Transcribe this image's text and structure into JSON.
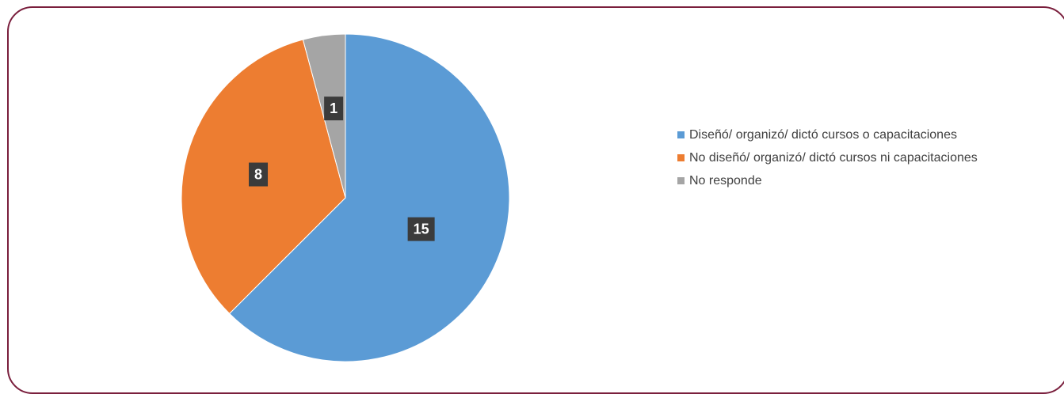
{
  "chart_data": {
    "type": "pie",
    "categories": [
      "Diseñó/ organizó/ dictó cursos o capacitaciones",
      "No diseñó/ organizó/ dictó cursos ni capacitaciones",
      "No responde"
    ],
    "values": [
      15,
      8,
      1
    ],
    "data_labels": [
      "15",
      "8",
      "1"
    ],
    "colors": [
      "#5b9bd5",
      "#ed7d31",
      "#a5a5a5"
    ],
    "start": "top, clockwise",
    "legend_position": "right"
  }
}
